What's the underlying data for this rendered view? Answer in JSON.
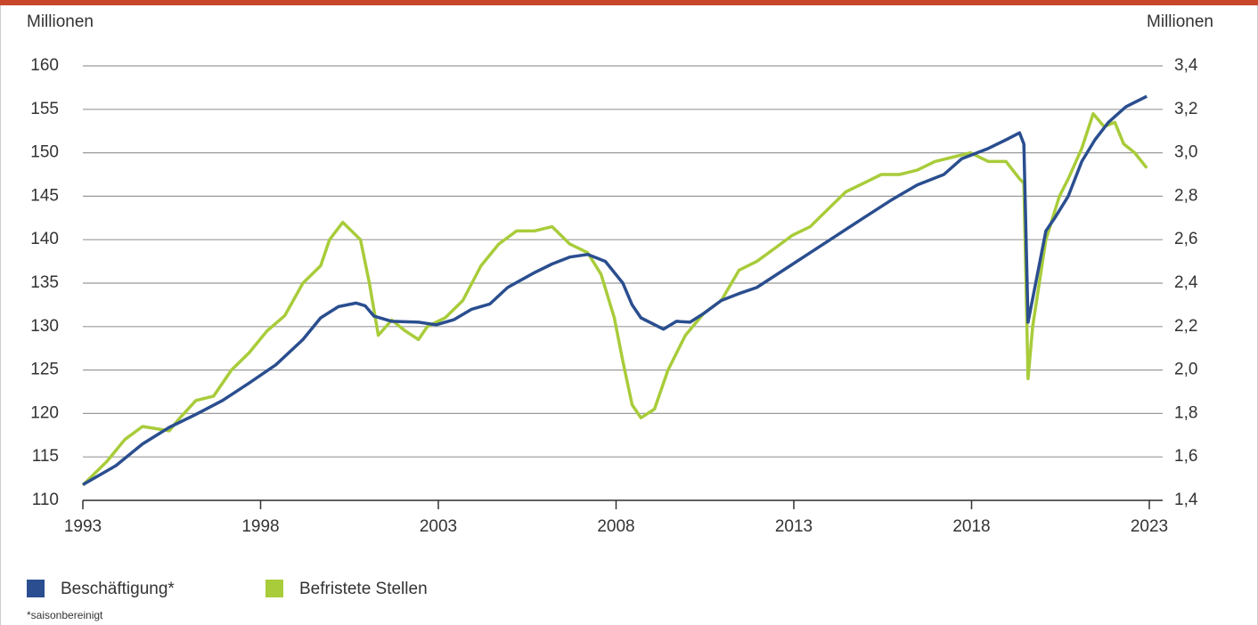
{
  "chart_data": {
    "type": "line",
    "y_label": "Millionen",
    "y2_label": "Millionen",
    "footnote": "*saisonbereinigt",
    "xlim": [
      1993,
      2023
    ],
    "xticks": [
      1993,
      1998,
      2003,
      2008,
      2013,
      2018,
      2023
    ],
    "ylim": [
      110,
      160
    ],
    "yticks": [
      110,
      115,
      120,
      125,
      130,
      135,
      140,
      145,
      150,
      155,
      160
    ],
    "y2lim": [
      1.4,
      3.4
    ],
    "y2ticks": [
      {
        "value": 1.4,
        "label": "1,4"
      },
      {
        "value": 1.6,
        "label": "1,6"
      },
      {
        "value": 1.8,
        "label": "1,8"
      },
      {
        "value": 2.0,
        "label": "2,0"
      },
      {
        "value": 2.2,
        "label": "2,2"
      },
      {
        "value": 2.4,
        "label": "2,4"
      },
      {
        "value": 2.6,
        "label": "2,6"
      },
      {
        "value": 2.8,
        "label": "2,8"
      },
      {
        "value": 3.0,
        "label": "3,0"
      },
      {
        "value": 3.2,
        "label": "3,2"
      },
      {
        "value": 3.4,
        "label": "3,4"
      }
    ],
    "grid": true,
    "legend": "bottom-left",
    "series": [
      {
        "name": "Beschäftigung*",
        "color": "#2a4e8f",
        "axis": "y",
        "x": [
          1993.0,
          1993.93,
          1994.68,
          1995.43,
          1996.18,
          1996.93,
          1997.68,
          1998.43,
          1999.19,
          1999.69,
          2000.19,
          2000.44,
          2000.69,
          2000.94,
          2001.19,
          2001.69,
          2002.44,
          2002.94,
          2003.44,
          2003.94,
          2004.45,
          2004.95,
          2005.7,
          2006.2,
          2006.7,
          2007.2,
          2007.7,
          2008.19,
          2008.45,
          2008.7,
          2009.33,
          2009.7,
          2010.08,
          2010.46,
          2010.96,
          2011.46,
          2011.96,
          2012.71,
          2013.46,
          2014.21,
          2014.96,
          2015.72,
          2016.47,
          2017.22,
          2017.72,
          2018.47,
          2018.97,
          2019.35,
          2019.47,
          2019.59,
          2020.09,
          2020.34,
          2020.72,
          2021.1,
          2021.47,
          2021.85,
          2022.34,
          2022.93
        ],
        "values": [
          111.8,
          114,
          116.5,
          118.4,
          119.9,
          121.5,
          123.5,
          125.6,
          128.5,
          131,
          132.3,
          132.5,
          132.7,
          132.4,
          131.2,
          130.6,
          130.5,
          130.2,
          130.8,
          132,
          132.6,
          134.5,
          136.2,
          137.2,
          138,
          138.3,
          137.5,
          135,
          132.5,
          131,
          129.7,
          130.6,
          130.5,
          131.5,
          133,
          133.8,
          134.5,
          136.5,
          138.5,
          140.5,
          142.5,
          144.5,
          146.3,
          147.5,
          149.3,
          150.5,
          151.5,
          152.3,
          151,
          130.5,
          141,
          142.5,
          145,
          149,
          151.5,
          153.5,
          155.3,
          156.5
        ]
      },
      {
        "name": "Befristete Stellen",
        "color": "#a8cc3a",
        "axis": "y2",
        "x": [
          1993.0,
          1993.68,
          1994.18,
          1994.68,
          1995.43,
          1995.68,
          1996.18,
          1996.68,
          1997.18,
          1997.68,
          1998.18,
          1998.68,
          1999.19,
          1999.69,
          1999.94,
          2000.31,
          2000.56,
          2000.81,
          2001.06,
          2001.31,
          2001.69,
          2002.07,
          2002.44,
          2002.69,
          2003.19,
          2003.69,
          2004.2,
          2004.7,
          2005.2,
          2005.7,
          2006.2,
          2006.7,
          2007.2,
          2007.58,
          2007.95,
          2008.19,
          2008.45,
          2008.7,
          2009.08,
          2009.46,
          2009.95,
          2010.46,
          2010.96,
          2011.46,
          2011.96,
          2012.46,
          2012.96,
          2013.46,
          2013.96,
          2014.46,
          2014.96,
          2015.46,
          2015.97,
          2016.47,
          2016.97,
          2017.47,
          2017.97,
          2018.47,
          2018.97,
          2019.35,
          2019.47,
          2019.59,
          2019.72,
          2020.09,
          2020.47,
          2020.72,
          2021.1,
          2021.42,
          2021.73,
          2022.03,
          2022.28,
          2022.59,
          2022.93
        ],
        "values": [
          1.47,
          1.58,
          1.68,
          1.74,
          1.72,
          1.77,
          1.86,
          1.88,
          2.0,
          2.08,
          2.18,
          2.25,
          2.4,
          2.48,
          2.6,
          2.68,
          2.64,
          2.6,
          2.4,
          2.16,
          2.23,
          2.18,
          2.14,
          2.2,
          2.24,
          2.32,
          2.48,
          2.58,
          2.64,
          2.64,
          2.66,
          2.58,
          2.54,
          2.44,
          2.24,
          2.04,
          1.84,
          1.78,
          1.82,
          2.0,
          2.16,
          2.26,
          2.32,
          2.46,
          2.5,
          2.56,
          2.62,
          2.66,
          2.74,
          2.82,
          2.86,
          2.9,
          2.9,
          2.92,
          2.96,
          2.98,
          3.0,
          2.96,
          2.96,
          2.88,
          2.86,
          1.96,
          2.2,
          2.6,
          2.8,
          2.88,
          3.02,
          3.18,
          3.12,
          3.14,
          3.04,
          3.0,
          2.93
        ]
      }
    ]
  }
}
